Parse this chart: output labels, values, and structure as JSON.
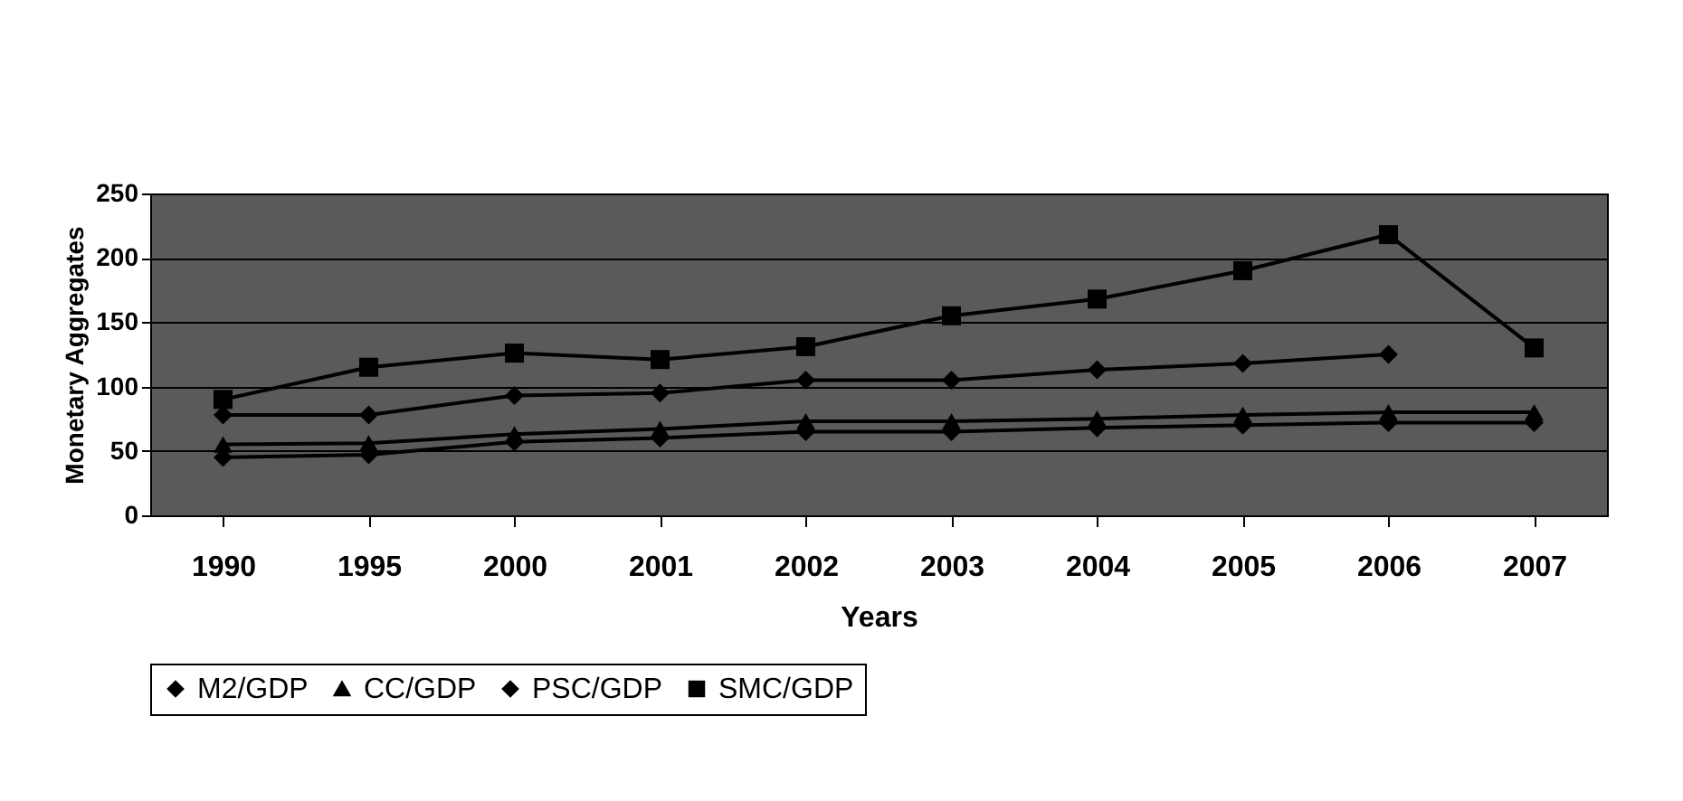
{
  "chart_data": {
    "type": "line",
    "xlabel": "Years",
    "ylabel": "Monetary Aggregates",
    "categories": [
      "1990",
      "1995",
      "2000",
      "2001",
      "2002",
      "2003",
      "2004",
      "2005",
      "2006",
      "2007"
    ],
    "series": [
      {
        "name": "M2/GDP",
        "color": "#000000",
        "marker": "diamond",
        "values": [
          78,
          78,
          93,
          95,
          105,
          105,
          113,
          118,
          125,
          null
        ]
      },
      {
        "name": "CC/GDP",
        "color": "#000000",
        "marker": "triangle",
        "values": [
          55,
          56,
          63,
          67,
          73,
          73,
          75,
          78,
          80,
          80
        ]
      },
      {
        "name": "PSC/GDP",
        "color": "#000000",
        "marker": "diamond",
        "values": [
          45,
          47,
          57,
          60,
          65,
          65,
          68,
          70,
          72,
          72
        ]
      },
      {
        "name": "SMC/GDP",
        "color": "#000000",
        "marker": "square",
        "values": [
          90,
          115,
          126,
          121,
          131,
          155,
          168,
          190,
          218,
          130
        ]
      }
    ],
    "ylim": [
      0,
      250
    ],
    "yticks": [
      0,
      50,
      100,
      150,
      200,
      250
    ],
    "grid": "y",
    "legend": "bottom"
  }
}
